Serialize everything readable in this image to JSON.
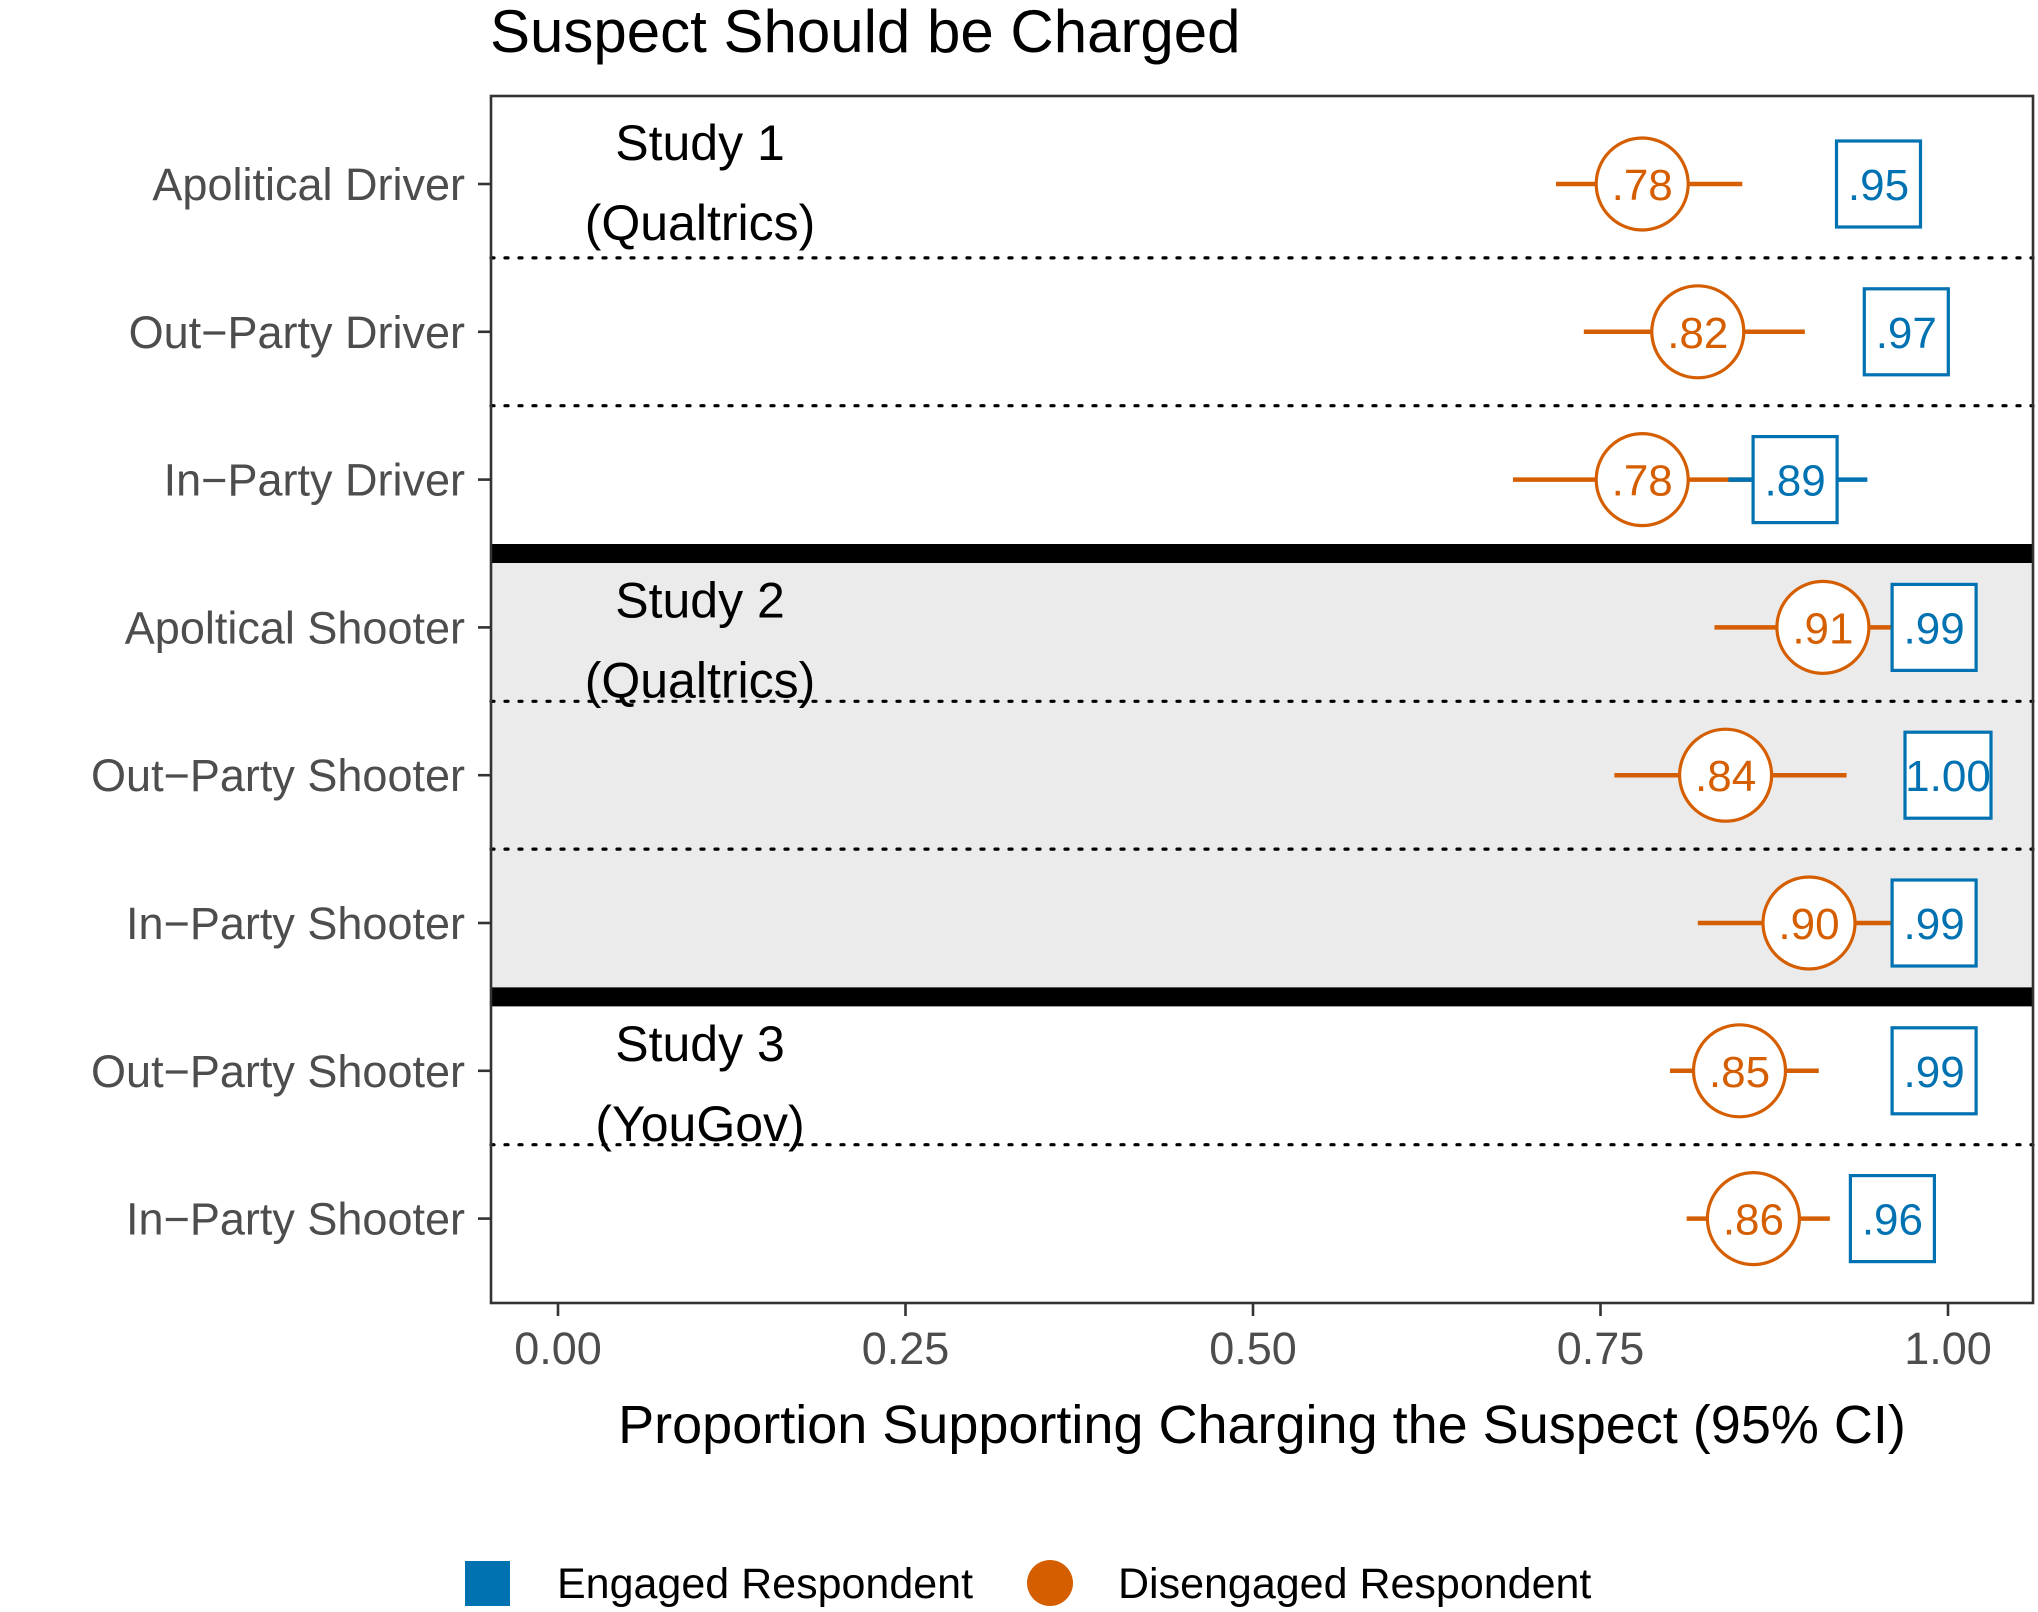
{
  "chart_data": {
    "type": "dot-ci",
    "title": "Suspect Should be Charged",
    "xlabel": "Proportion Supporting Charging the Suspect (95% CI)",
    "ylabel": "",
    "xlim": [
      -0.05,
      1.06
    ],
    "x_ticks": [
      "0.00",
      "0.25",
      "0.50",
      "0.75",
      "1.00"
    ],
    "x_tick_values": [
      0,
      0.25,
      0.5,
      0.75,
      1.0
    ],
    "grid": false,
    "legend_position": "bottom",
    "colors": {
      "engaged": "#0072b2",
      "disengaged": "#d55e00",
      "shaded_band": "#ebebeb"
    },
    "legend": [
      {
        "name": "Engaged Respondent",
        "shape": "square",
        "color": "#0072b2"
      },
      {
        "name": "Disengaged Respondent",
        "shape": "circle",
        "color": "#d55e00"
      }
    ],
    "studies": [
      {
        "label_line1": "Study 1",
        "label_line2": "(Qualtrics)",
        "shaded": false
      },
      {
        "label_line1": "Study 2",
        "label_line2": "(Qualtrics)",
        "shaded": true
      },
      {
        "label_line1": "Study 3",
        "label_line2": "(YouGov)",
        "shaded": false
      }
    ],
    "rows": [
      {
        "label": "Apolitical Driver",
        "study": 0,
        "engaged": {
          "value": 0.95,
          "text": ".95",
          "lo": 0.95,
          "hi": 0.95
        },
        "disengaged": {
          "value": 0.78,
          "text": ".78",
          "lo": 0.718,
          "hi": 0.852
        }
      },
      {
        "label": "Out−Party Driver",
        "study": 0,
        "engaged": {
          "value": 0.97,
          "text": ".97",
          "lo": 0.97,
          "hi": 0.97
        },
        "disengaged": {
          "value": 0.82,
          "text": ".82",
          "lo": 0.738,
          "hi": 0.897
        }
      },
      {
        "label": "In−Party Driver",
        "study": 0,
        "engaged": {
          "value": 0.89,
          "text": ".89",
          "lo": 0.842,
          "hi": 0.942
        },
        "disengaged": {
          "value": 0.78,
          "text": ".78",
          "lo": 0.687,
          "hi": 0.858
        }
      },
      {
        "label": "Apoltical Shooter",
        "study": 1,
        "engaged": {
          "value": 0.99,
          "text": ".99",
          "lo": 0.99,
          "hi": 0.99
        },
        "disengaged": {
          "value": 0.91,
          "text": ".91",
          "lo": 0.832,
          "hi": 0.965
        }
      },
      {
        "label": "Out−Party Shooter",
        "study": 1,
        "engaged": {
          "value": 1.0,
          "text": "1.00",
          "lo": 1.0,
          "hi": 1.0
        },
        "disengaged": {
          "value": 0.84,
          "text": ".84",
          "lo": 0.76,
          "hi": 0.927
        }
      },
      {
        "label": "In−Party Shooter",
        "study": 1,
        "engaged": {
          "value": 0.99,
          "text": ".99",
          "lo": 0.99,
          "hi": 0.99
        },
        "disengaged": {
          "value": 0.9,
          "text": ".90",
          "lo": 0.82,
          "hi": 0.96
        }
      },
      {
        "label": "Out−Party Shooter",
        "study": 2,
        "engaged": {
          "value": 0.99,
          "text": ".99",
          "lo": 0.99,
          "hi": 0.99
        },
        "disengaged": {
          "value": 0.85,
          "text": ".85",
          "lo": 0.8,
          "hi": 0.907
        }
      },
      {
        "label": "In−Party Shooter",
        "study": 2,
        "engaged": {
          "value": 0.96,
          "text": ".96",
          "lo": 0.96,
          "hi": 0.96
        },
        "disengaged": {
          "value": 0.86,
          "text": ".86",
          "lo": 0.812,
          "hi": 0.915
        }
      }
    ]
  }
}
